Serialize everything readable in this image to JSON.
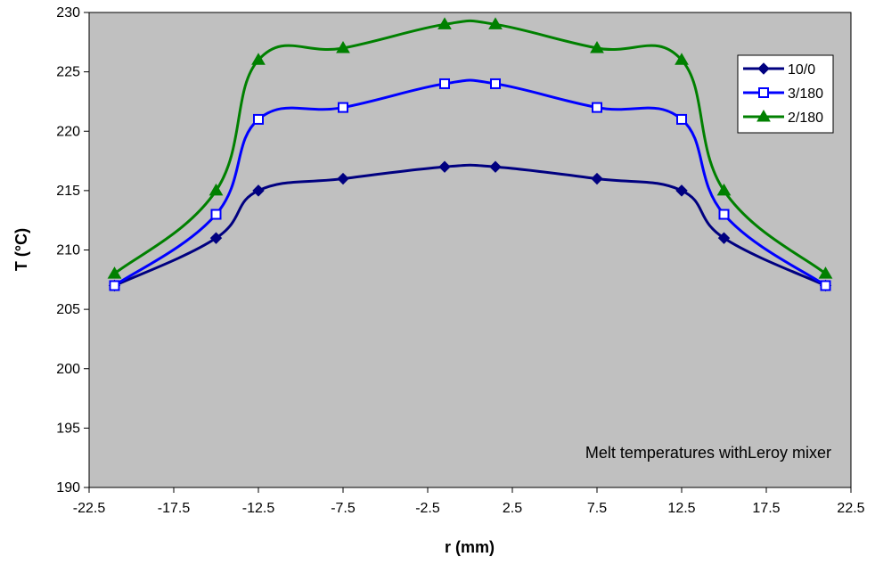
{
  "chart_data": {
    "type": "line",
    "title": "",
    "xlabel": "r (mm)",
    "ylabel": "T (°C)",
    "xlim": [
      -22.5,
      22.5
    ],
    "ylim": [
      190,
      230
    ],
    "xticks": [
      -22.5,
      -17.5,
      -12.5,
      -7.5,
      -2.5,
      2.5,
      7.5,
      12.5,
      17.5,
      22.5
    ],
    "xtick_labels": [
      "-22.5",
      "-17.5",
      "-12.5",
      "-7.5",
      "-2.5",
      "2.5",
      "7.5",
      "12.5",
      "17.5",
      "22.5"
    ],
    "yticks": [
      190,
      195,
      200,
      205,
      210,
      215,
      220,
      225,
      230
    ],
    "ytick_labels": [
      "190",
      "195",
      "200",
      "205",
      "210",
      "215",
      "220",
      "225",
      "230"
    ],
    "grid": false,
    "smoothed": true,
    "plot_background": "#c0c0c0",
    "legend_position": "top-right",
    "annotation": "Melt temperatures withLeroy mixer",
    "x": [
      -21,
      -15,
      -12.5,
      -7.5,
      -1.5,
      1.5,
      7.5,
      12.5,
      15,
      21
    ],
    "series": [
      {
        "name": "10/0",
        "color": "#000080",
        "marker": "diamond",
        "values": [
          207,
          211,
          215,
          216,
          217,
          217,
          216,
          215,
          211,
          207
        ]
      },
      {
        "name": "3/180",
        "color": "#0000ff",
        "marker": "square",
        "values": [
          207,
          213,
          221,
          222,
          224,
          224,
          222,
          221,
          213,
          207
        ]
      },
      {
        "name": "2/180",
        "color": "#008000",
        "marker": "triangle",
        "values": [
          208,
          215,
          226,
          227,
          229,
          229,
          227,
          226,
          215,
          208
        ]
      }
    ]
  }
}
